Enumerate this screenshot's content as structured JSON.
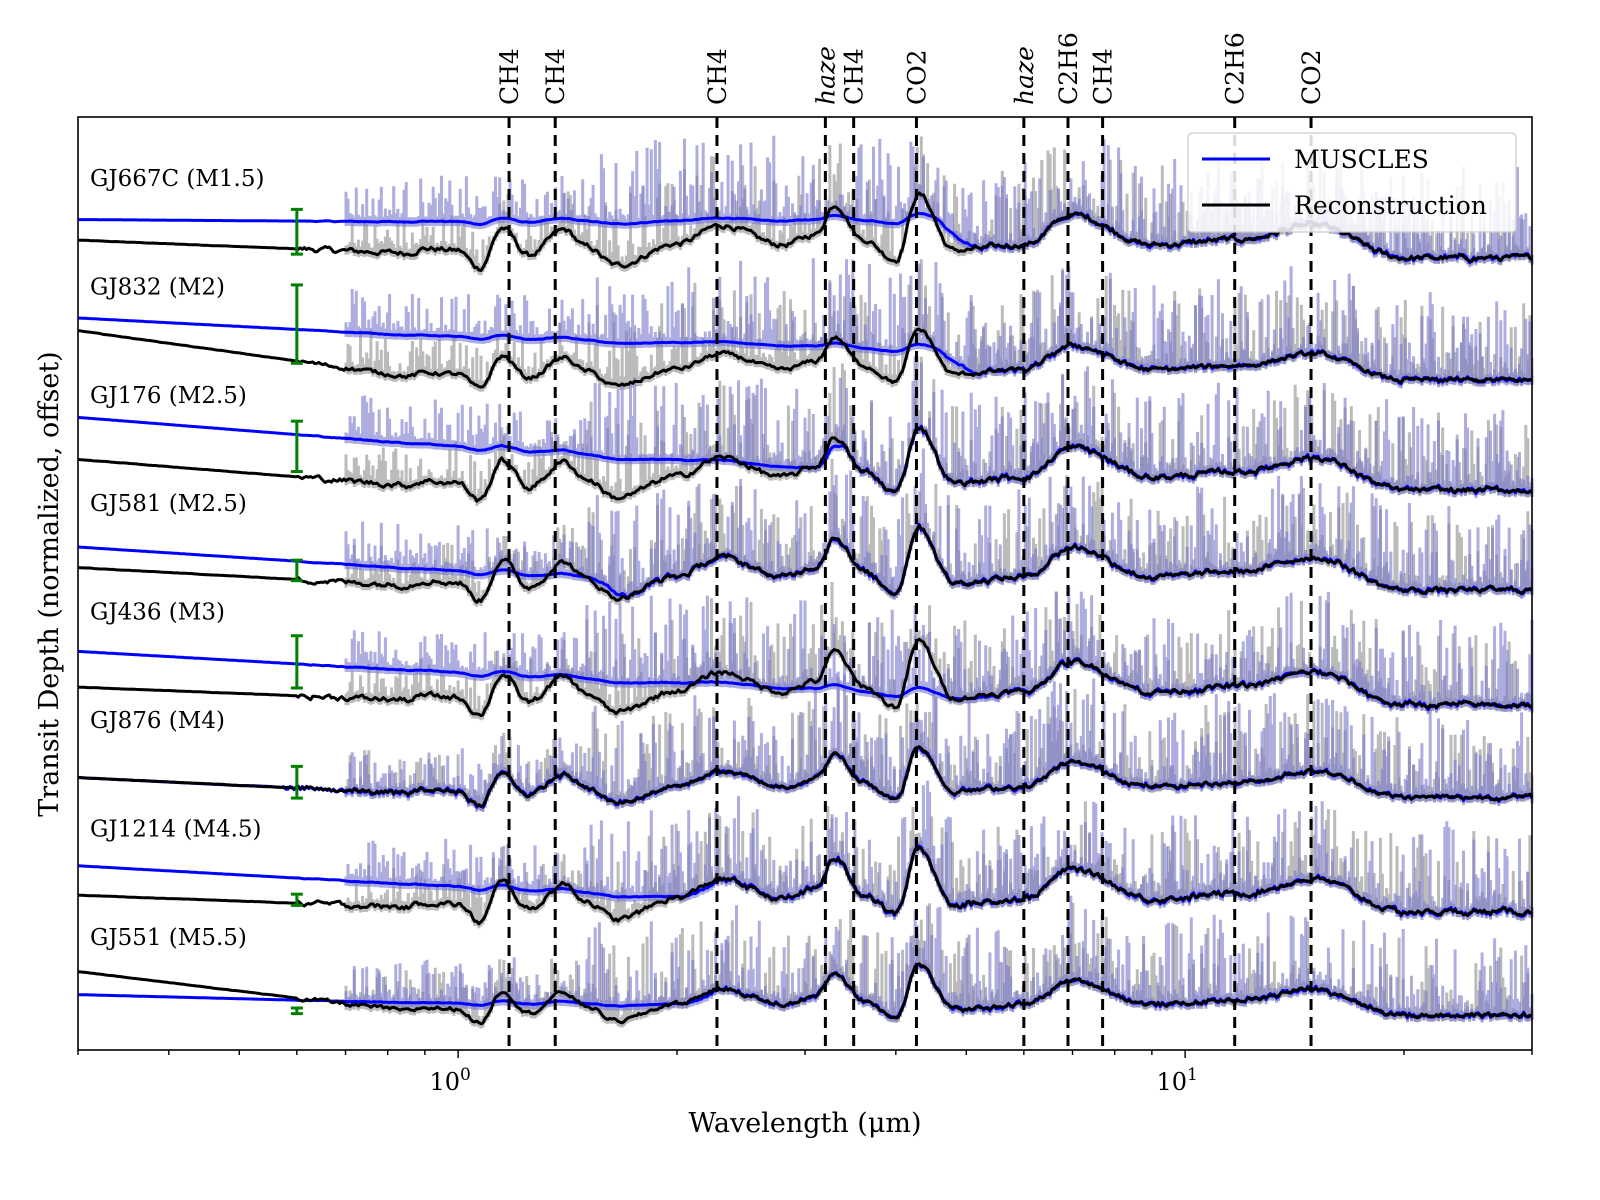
{
  "chart_data": {
    "type": "line",
    "title": "",
    "xlabel": "Wavelength (μm)",
    "ylabel": "Transit Depth (normalized, offset)",
    "xscale": "log",
    "xlim": [
      0.3,
      30
    ],
    "ylim": [
      0,
      10
    ],
    "xticks": [
      {
        "value": 1,
        "label": "10",
        "exp": "0"
      },
      {
        "value": 10,
        "label": "10",
        "exp": "1"
      }
    ],
    "legend": {
      "placement": "top-right",
      "entries": [
        {
          "label": "MUSCLES",
          "color": "#0000ff"
        },
        {
          "label": "Reconstruction",
          "color": "#000000"
        }
      ]
    },
    "colors": {
      "muscles": "#0000ff",
      "muscles_band": "#7777cc",
      "reconstruction": "#000000",
      "reconstruction_band": "#bbbbbb",
      "errorbar": "#008000"
    },
    "errorbar_wavelength": 0.6,
    "feature_lines": [
      {
        "label": "CH4",
        "wavelength": 1.175,
        "italic": false
      },
      {
        "label": "CH4",
        "wavelength": 1.36,
        "italic": false
      },
      {
        "label": "CH4",
        "wavelength": 2.27,
        "italic": false
      },
      {
        "label": "haze",
        "wavelength": 3.2,
        "italic": true
      },
      {
        "label": "CH4",
        "wavelength": 3.5,
        "italic": false
      },
      {
        "label": "CO2",
        "wavelength": 4.27,
        "italic": false
      },
      {
        "label": "haze",
        "wavelength": 6.0,
        "italic": true
      },
      {
        "label": "C2H6",
        "wavelength": 6.9,
        "italic": false
      },
      {
        "label": "CH4",
        "wavelength": 7.7,
        "italic": false
      },
      {
        "label": "C2H6",
        "wavelength": 11.7,
        "italic": false
      },
      {
        "label": "CO2",
        "wavelength": 14.9,
        "italic": false
      }
    ],
    "feature_template": {
      "wavelength": [
        0.85,
        0.9,
        1.0,
        1.07,
        1.15,
        1.25,
        1.4,
        1.5,
        1.65,
        2.0,
        2.3,
        2.8,
        3.1,
        3.3,
        3.6,
        4.0,
        4.3,
        4.8,
        6.0,
        7.0,
        9.0,
        12.0,
        15.0,
        20.0,
        30.0
      ],
      "depth": [
        0.05,
        0.1,
        0.08,
        -0.11,
        0.32,
        0.03,
        0.3,
        0.12,
        -0.08,
        0.15,
        0.35,
        0.14,
        0.25,
        0.57,
        0.2,
        -0.02,
        0.68,
        0.08,
        0.14,
        0.46,
        0.14,
        0.2,
        0.35,
        0.0,
        0.0
      ]
    },
    "series": [
      {
        "name": "GJ667C (M1.5)",
        "baseline": 8.49,
        "recon_start": 8.68,
        "muscles_start": 8.94,
        "muscles_merge_wavelength": 4.5,
        "amplitude": 1.0,
        "errorbar": {
          "center": 8.77,
          "halfwidth": 0.24
        }
      },
      {
        "name": "GJ832 (M2)",
        "baseline": 7.18,
        "recon_start": 7.71,
        "muscles_start": 7.87,
        "muscles_merge_wavelength": 4.5,
        "amplitude": 0.8,
        "errorbar": {
          "center": 7.78,
          "halfwidth": 0.42
        }
      },
      {
        "name": "GJ176 (M2.5)",
        "baseline": 6.0,
        "recon_start": 6.33,
        "muscles_start": 6.86,
        "muscles_merge_wavelength": 3.0,
        "amplitude": 1.0,
        "errorbar": {
          "center": 6.47,
          "halfwidth": 0.27
        }
      },
      {
        "name": "GJ581 (M2.5)",
        "baseline": 4.93,
        "recon_start": 5.17,
        "muscles_start": 5.43,
        "muscles_merge_wavelength": 1.5,
        "amplitude": 1.0,
        "errorbar": {
          "center": 5.14,
          "halfwidth": 0.11
        }
      },
      {
        "name": "GJ436 (M3)",
        "baseline": 3.7,
        "recon_start": 3.89,
        "muscles_start": 4.34,
        "muscles_merge_wavelength": 5.0,
        "amplitude": 1.0,
        "errorbar": {
          "center": 4.16,
          "halfwidth": 0.28
        }
      },
      {
        "name": "GJ876 (M4)",
        "baseline": 2.71,
        "recon_start": 2.92,
        "muscles_start": 2.92,
        "muscles_merge_wavelength": 0.5,
        "amplitude": 0.8,
        "errorbar": {
          "center": 2.87,
          "halfwidth": 0.17
        }
      },
      {
        "name": "GJ1214 (M4.5)",
        "baseline": 1.48,
        "recon_start": 1.66,
        "muscles_start": 2.03,
        "muscles_merge_wavelength": 2.0,
        "amplitude": 1.0,
        "errorbar": {
          "center": 1.61,
          "halfwidth": 0.06
        }
      },
      {
        "name": "GJ551 (M5.5)",
        "baseline": 0.375,
        "recon_start": 0.84,
        "muscles_start": 0.55,
        "muscles_merge_wavelength": 2.0,
        "amplitude": 0.8,
        "errorbar": {
          "center": 0.42,
          "halfwidth": 0.03
        }
      }
    ]
  }
}
